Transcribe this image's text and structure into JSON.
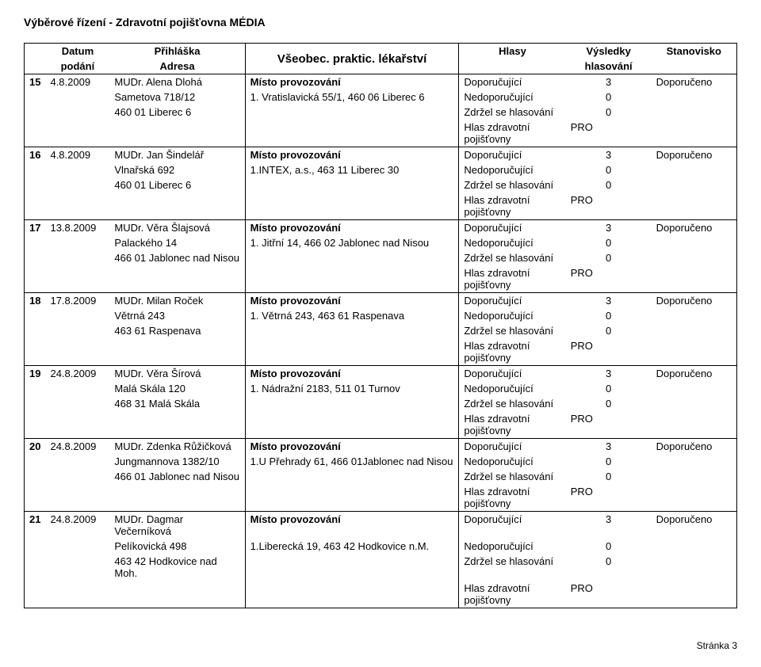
{
  "document": {
    "title": "Výběrové řízení - Zdravotní pojišťovna MÉDIA",
    "footer": "Stránka 3"
  },
  "header": {
    "date": "Datum",
    "submission": "podání",
    "application": "Přihláška",
    "address": "Adresa",
    "specialty": "Všeobec. praktic. lékařství",
    "votes": "Hlasy",
    "results": "Výsledky",
    "voting": "hlasování",
    "stance": "Stanovisko"
  },
  "labels": {
    "place": "Místo provozování",
    "recommending": "Doporučující",
    "not_recommending": "Nedoporučující",
    "abstained": "Zdržel se hlasování",
    "insurer_vote": "Hlas zdravotní pojišťovny",
    "recommended": "Doporučeno",
    "pro": "PRO"
  },
  "rows": [
    {
      "num": "15",
      "date": "4.8.2009",
      "name": "MUDr. Alena Dlohá",
      "addr1": "Sametova 718/12",
      "addr2": "460 01 Liberec 6",
      "loc": "1. Vratislavická 55/1, 460 06 Liberec 6",
      "rec": "3",
      "nrec": "0",
      "abst": "0"
    },
    {
      "num": "16",
      "date": "4.8.2009",
      "name": "MUDr. Jan Šindelář",
      "addr1": "Vlnařská 692",
      "addr2": "460 01 Liberec 6",
      "loc": "1.INTEX, a.s., 463 11 Liberec 30",
      "rec": "3",
      "nrec": "0",
      "abst": "0"
    },
    {
      "num": "17",
      "date": "13.8.2009",
      "name": "MUDr. Věra Šlajsová",
      "addr1": "Palackého 14",
      "addr2": "466 01 Jablonec nad Nisou",
      "loc": "1. Jitřní 14, 466 02 Jablonec nad Nisou",
      "rec": "3",
      "nrec": "0",
      "abst": "0"
    },
    {
      "num": "18",
      "date": "17.8.2009",
      "name": "MUDr. Milan Roček",
      "addr1": "Větrná 243",
      "addr2": "463 61 Raspenava",
      "loc": "1. Větrná 243, 463 61 Raspenava",
      "rec": "3",
      "nrec": "0",
      "abst": "0"
    },
    {
      "num": "19",
      "date": "24.8.2009",
      "name": "MUDr. Věra Šírová",
      "addr1": "Malá Skála 120",
      "addr2": "468 31 Malá Skála",
      "loc": "1. Nádražní 2183, 511 01 Turnov",
      "rec": "3",
      "nrec": "0",
      "abst": "0"
    },
    {
      "num": "20",
      "date": "24.8.2009",
      "name": "MUDr. Zdenka Růžičková",
      "addr1": "Jungmannova 1382/10",
      "addr2": "466 01 Jablonec nad Nisou",
      "loc": "1.U Přehrady 61, 466 01Jablonec nad Nisou",
      "rec": "3",
      "nrec": "0",
      "abst": "0"
    },
    {
      "num": "21",
      "date": "24.8.2009",
      "name": "MUDr. Dagmar Večerníková",
      "addr1": "Pelíkovická 498",
      "addr2": "463 42 Hodkovice nad Moh.",
      "loc": "1.Liberecká 19, 463 42 Hodkovice n.M.",
      "rec": "3",
      "nrec": "0",
      "abst": "0"
    }
  ]
}
